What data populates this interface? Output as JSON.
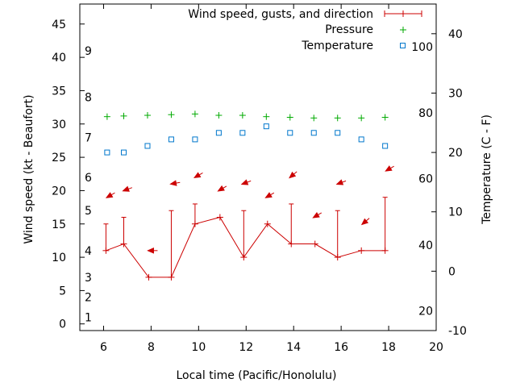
{
  "chart_data": {
    "type": "line",
    "title": "",
    "xlabel": "Local time (Pacific/Honolulu)",
    "ylabel": "Wind speed (kt - Beaufort)",
    "y2label": "Temperature (C - F)",
    "xlim": [
      5,
      20
    ],
    "ylim": [
      -1,
      48
    ],
    "y2lim": [
      -10,
      45
    ],
    "xticks": [
      "6",
      "8",
      "10",
      "12",
      "14",
      "16",
      "18",
      "20"
    ],
    "yticks": [
      "0",
      "5",
      "10",
      "15",
      "20",
      "25",
      "30",
      "35",
      "40",
      "45"
    ],
    "y2ticks": [
      "-10",
      "0",
      "10",
      "20",
      "30",
      "40"
    ],
    "beaufort_labels": [
      {
        "label": "1",
        "y": 1
      },
      {
        "label": "2",
        "y": 4
      },
      {
        "label": "3",
        "y": 7
      },
      {
        "label": "4",
        "y": 11
      },
      {
        "label": "5",
        "y": 17
      },
      {
        "label": "6",
        "y": 22
      },
      {
        "label": "7",
        "y": 28
      },
      {
        "label": "8",
        "y": 34
      },
      {
        "label": "9",
        "y": 41
      }
    ],
    "fahrenheit_labels": [
      {
        "label": "20",
        "y2": -6.7
      },
      {
        "label": "40",
        "y2": 4.4
      },
      {
        "label": "60",
        "y2": 15.6
      },
      {
        "label": "80",
        "y2": 26.7
      },
      {
        "label": "100",
        "y2": 37.8
      }
    ],
    "legend": [
      {
        "name": "Wind speed, gusts, and direction",
        "symbol": "errorbar-line",
        "color": "#cc0000"
      },
      {
        "name": "Pressure",
        "symbol": "plus",
        "color": "#00aa00"
      },
      {
        "name": "Temperature",
        "symbol": "square",
        "color": "#0077cc"
      }
    ],
    "series": [
      {
        "name": "Wind speed",
        "x": [
          6.1,
          6.85,
          7.9,
          8.85,
          9.85,
          10.9,
          11.9,
          12.9,
          13.9,
          14.9,
          15.85,
          16.85,
          17.85
        ],
        "values": [
          11,
          12,
          7,
          7,
          15,
          16,
          10,
          15,
          12,
          12,
          10,
          11,
          11
        ],
        "gusts": [
          15,
          16,
          7,
          17,
          18,
          16,
          17,
          15,
          18,
          12,
          17,
          11,
          19
        ]
      },
      {
        "name": "Direction arrows",
        "x": [
          6.15,
          6.85,
          7.9,
          8.85,
          9.85,
          10.85,
          11.85,
          12.85,
          13.85,
          14.85,
          15.85,
          16.9,
          17.9
        ],
        "values": [
          19,
          20,
          11,
          21,
          22,
          20,
          21,
          19,
          22,
          16,
          21,
          15,
          23
        ],
        "angle_deg": [
          -30,
          -20,
          0,
          -10,
          -30,
          -30,
          -20,
          -30,
          -40,
          -30,
          -20,
          -40,
          -30
        ]
      },
      {
        "name": "Pressure",
        "x": [
          6.15,
          6.85,
          7.85,
          8.85,
          9.85,
          10.85,
          11.85,
          12.85,
          13.85,
          14.85,
          15.85,
          16.85,
          17.85
        ],
        "values": [
          31.1,
          31.2,
          31.3,
          31.4,
          31.5,
          31.3,
          31.3,
          31.1,
          31.0,
          30.9,
          30.9,
          30.9,
          31.0
        ]
      },
      {
        "name": "Temperature",
        "x": [
          6.15,
          6.85,
          7.85,
          8.85,
          9.85,
          10.85,
          11.85,
          12.85,
          13.85,
          14.85,
          15.85,
          16.85,
          17.85
        ],
        "values": [
          20.0,
          20.0,
          21.1,
          22.2,
          22.2,
          23.3,
          23.3,
          24.4,
          23.3,
          23.3,
          23.3,
          22.2,
          21.1
        ]
      }
    ]
  }
}
